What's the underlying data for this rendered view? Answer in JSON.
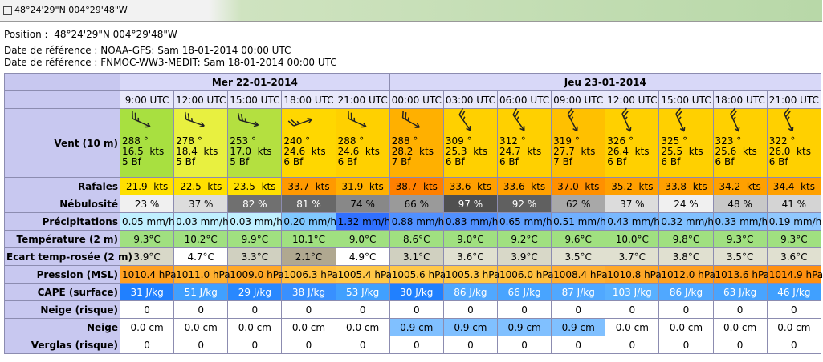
{
  "title_bar": "48°24'29\"N  004°29'48\"W",
  "position": {
    "label": "Position :",
    "value": "48°24'29\"N  004°29'48\"W"
  },
  "references": [
    "Date de référence : NOAA-GFS: Sam 18-01-2014 00:00 UTC",
    "Date de référence : FNMOC-WW3-MEDIT: Sam 18-01-2014 00:00 UTC"
  ],
  "table": {
    "dates": [
      "Mer 22-01-2014",
      "Jeu 23-01-2014"
    ],
    "times": [
      "9:00 UTC",
      "12:00 UTC",
      "15:00 UTC",
      "18:00 UTC",
      "21:00 UTC",
      "00:00 UTC",
      "03:00 UTC",
      "06:00 UTC",
      "09:00 UTC",
      "12:00 UTC",
      "15:00 UTC",
      "18:00 UTC",
      "21:00 UTC"
    ],
    "wind": {
      "label": "Vent (10 m)",
      "cells": [
        [
          "288 °",
          "16.5  kts",
          "5 Bf"
        ],
        [
          "278 °",
          "18.4  kts",
          "5 Bf"
        ],
        [
          "253 °",
          "17.0  kts",
          "5 Bf"
        ],
        [
          "240 °",
          "24.6  kts",
          "6 Bf"
        ],
        [
          "288 °",
          "24.6  kts",
          "6 Bf"
        ],
        [
          "288 °",
          "28.2  kts",
          "7 Bf"
        ],
        [
          "309 °",
          "25.3  kts",
          "6 Bf"
        ],
        [
          "312 °",
          "24.7  kts",
          "6 Bf"
        ],
        [
          "319 °",
          "27.7  kts",
          "7 Bf"
        ],
        [
          "326 °",
          "26.4  kts",
          "6 Bf"
        ],
        [
          "325 °",
          "25.5  kts",
          "6 Bf"
        ],
        [
          "323 °",
          "25.6  kts",
          "6 Bf"
        ],
        [
          "322 °",
          "26.0  kts",
          "6 Bf"
        ]
      ]
    },
    "rows": [
      {
        "label": "Rafales",
        "cells": [
          "21.9  kts",
          "22.5  kts",
          "23.5  kts",
          "33.7  kts",
          "31.9  kts",
          "38.7  kts",
          "33.6  kts",
          "33.6  kts",
          "37.0  kts",
          "35.2  kts",
          "33.8  kts",
          "34.2  kts",
          "34.4  kts"
        ]
      },
      {
        "label": "Nébulosité",
        "cells": [
          "23 %",
          "37 %",
          "82 %",
          "81 %",
          "74 %",
          "66 %",
          "97 %",
          "92 %",
          "62 %",
          "37 %",
          "24 %",
          "48 %",
          "41 %"
        ]
      },
      {
        "label": "Précipitations",
        "cells": [
          "0.05 mm/h",
          "0.03 mm/h",
          "0.03 mm/h",
          "0.20 mm/h",
          "1.32 mm/h",
          "0.88 mm/h",
          "0.83 mm/h",
          "0.65 mm/h",
          "0.51 mm/h",
          "0.43 mm/h",
          "0.32 mm/h",
          "0.33 mm/h",
          "0.19 mm/h"
        ]
      },
      {
        "label": "Température (2 m)",
        "cells": [
          "9.3°C",
          "10.2°C",
          "9.9°C",
          "10.1°C",
          "9.0°C",
          "8.6°C",
          "9.0°C",
          "9.2°C",
          "9.6°C",
          "10.0°C",
          "9.8°C",
          "9.3°C",
          "9.3°C"
        ]
      },
      {
        "label": "Ecart temp-rosée (2 m)",
        "cells": [
          "3.9°C",
          "4.7°C",
          "3.3°C",
          "2.1°C",
          "4.9°C",
          "3.1°C",
          "3.6°C",
          "3.9°C",
          "3.5°C",
          "3.7°C",
          "3.8°C",
          "3.5°C",
          "3.6°C"
        ]
      },
      {
        "label": "Pression (MSL)",
        "cells": [
          "1010.4 hPa",
          "1011.0 hPa",
          "1009.0 hPa",
          "1006.3 hPa",
          "1005.4 hPa",
          "1005.6 hPa",
          "1005.3 hPa",
          "1006.0 hPa",
          "1008.4 hPa",
          "1010.8 hPa",
          "1012.0 hPa",
          "1013.6 hPa",
          "1014.9 hPa"
        ]
      },
      {
        "label": "CAPE (surface)",
        "cells": [
          "31 J/kg",
          "51 J/kg",
          "29 J/kg",
          "38 J/kg",
          "53 J/kg",
          "30 J/kg",
          "86 J/kg",
          "66 J/kg",
          "87 J/kg",
          "103 J/kg",
          "86 J/kg",
          "63 J/kg",
          "46 J/kg"
        ]
      },
      {
        "label": "Neige (risque)",
        "cells": [
          "0",
          "0",
          "0",
          "0",
          "0",
          "0",
          "0",
          "0",
          "0",
          "0",
          "0",
          "0",
          "0"
        ]
      },
      {
        "label": "Neige",
        "cells": [
          "0.0 cm",
          "0.0 cm",
          "0.0 cm",
          "0.0 cm",
          "0.0 cm",
          "0.9 cm",
          "0.9 cm",
          "0.9 cm",
          "0.9 cm",
          "0.0 cm",
          "0.0 cm",
          "0.0 cm",
          "0.0 cm"
        ]
      },
      {
        "label": "Verglas (risque)",
        "cells": [
          "0",
          "0",
          "0",
          "0",
          "0",
          "0",
          "0",
          "0",
          "0",
          "0",
          "0",
          "0",
          "0"
        ]
      }
    ]
  }
}
